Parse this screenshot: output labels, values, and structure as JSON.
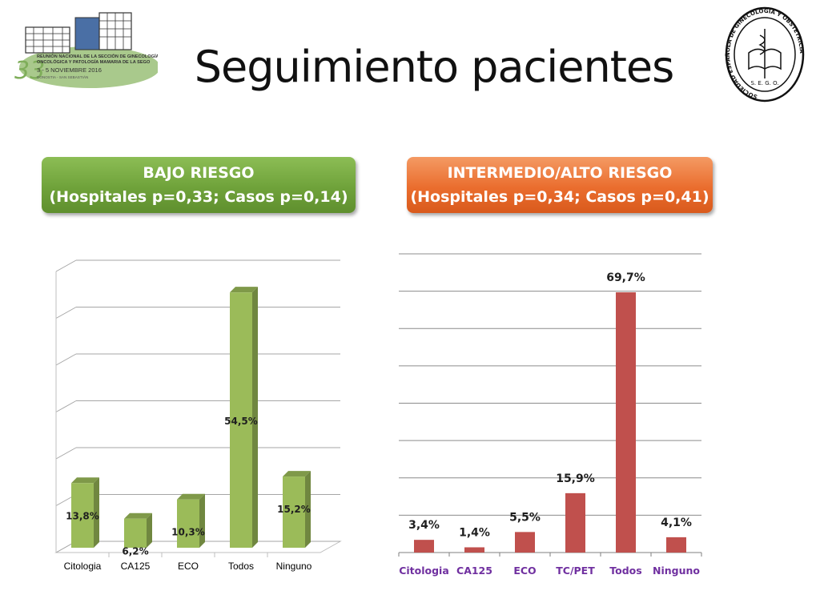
{
  "slide": {
    "title": "Seguimiento pacientes"
  },
  "logo_left": {
    "number": "33",
    "line1": "REUNIÓN NACIONAL DE LA SECCIÓN DE GINECOLOGÍA",
    "line2": "ONCOLÓGICA Y PATOLOGÍA MAMARIA DE LA SEGO",
    "dates": "3 - 5 NOVIEMBRE 2016",
    "city": "DONOSTIA - SAN SEBASTIÁN"
  },
  "logo_right": {
    "ring_text": "SOCIEDAD ESPAÑOLA DE GINECOLOGÍA Y OBSTETRICIA",
    "bottom": "S. E. G. O."
  },
  "colors": {
    "green_bar": "#9bbb59",
    "red_bar": "#c0504d",
    "red_label": "#7030a0"
  },
  "chart_data": [
    {
      "type": "bar",
      "header_line1": "BAJO RIESGO",
      "header_line2": "(Hospitales p=0,33; Casos p=0,14)",
      "categories": [
        "Citologia",
        "CA125",
        "ECO",
        "Todos",
        "Ninguno"
      ],
      "values": [
        13.8,
        6.2,
        10.3,
        54.5,
        15.2
      ],
      "data_labels": [
        "13,8%",
        "6,2%",
        "10,3%",
        "54,5%",
        "15,2%"
      ],
      "ylim": [
        0,
        60
      ],
      "grid": true,
      "style": "3d"
    },
    {
      "type": "bar",
      "header_line1": "INTERMEDIO/ALTO RIESGO",
      "header_line2": "(Hospitales p=0,34; Casos p=0,41)",
      "categories": [
        "Citologia",
        "CA125",
        "ECO",
        "TC/PET",
        "Todos",
        "Ninguno"
      ],
      "values": [
        3.4,
        1.4,
        5.5,
        15.9,
        69.7,
        4.1
      ],
      "data_labels": [
        "3,4%",
        "1,4%",
        "5,5%",
        "15,9%",
        "69,7%",
        "4,1%"
      ],
      "ylim": [
        0,
        80
      ],
      "grid": true
    }
  ]
}
